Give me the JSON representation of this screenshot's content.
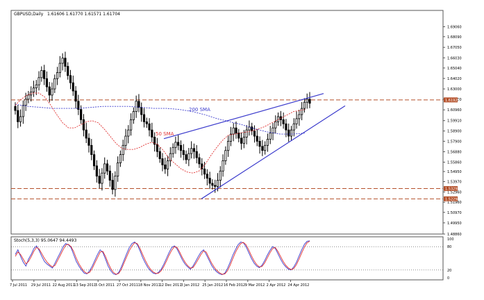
{
  "chart_data": [
    {
      "type": "candlestick",
      "title": "GBPUSD,Daily",
      "ohlc_readout": "1.61606 1.61770 1.61571 1.61704",
      "ylim": [
        1.4886,
        1.7065
      ],
      "y_ticks": [
        "1.69060",
        "1.68090",
        "1.67050",
        "1.66030",
        "1.65040",
        "1.64020",
        "1.63000",
        "1.62000",
        "1.60960",
        "1.59910",
        "1.58900",
        "1.57900",
        "1.56880",
        "1.55860",
        "1.54950",
        "1.53970",
        "1.52960",
        "1.51960",
        "1.50970",
        "1.49950",
        "1.48860"
      ],
      "price_tags": [
        {
          "label": "1.61929",
          "value": 1.6193,
          "color": "#b4502a"
        },
        {
          "label": "1.53292",
          "value": 1.5329,
          "color": "#b4502a"
        },
        {
          "label": "1.52294",
          "value": 1.5229,
          "color": "#b4502a"
        }
      ],
      "x_labels": [
        "7 Jul 2011",
        "29 Jul 2011",
        "22 Aug 2011",
        "13 Sep 2011",
        "5 Oct 2011",
        "27 Oct 2011",
        "18 Nov 2011",
        "12 Dec 2011",
        "3 Jan 2012",
        "25 Jan 2012",
        "16 Feb 2012",
        "9 Mar 2012",
        "2 Apr 2012",
        "24 Apr 2012"
      ],
      "closes": [
        1.609,
        1.598,
        1.603,
        1.614,
        1.62,
        1.624,
        1.627,
        1.631,
        1.634,
        1.641,
        1.648,
        1.64,
        1.632,
        1.624,
        1.63,
        1.64,
        1.646,
        1.655,
        1.66,
        1.652,
        1.643,
        1.636,
        1.628,
        1.618,
        1.61,
        1.6,
        1.59,
        1.582,
        1.575,
        1.566,
        1.555,
        1.545,
        1.538,
        1.548,
        1.557,
        1.55,
        1.541,
        1.532,
        1.545,
        1.558,
        1.566,
        1.575,
        1.584,
        1.59,
        1.6,
        1.608,
        1.618,
        1.612,
        1.605,
        1.598,
        1.596,
        1.59,
        1.583,
        1.576,
        1.569,
        1.562,
        1.556,
        1.552,
        1.56,
        1.567,
        1.573,
        1.578,
        1.575,
        1.57,
        1.566,
        1.561,
        1.567,
        1.572,
        1.569,
        1.563,
        1.557,
        1.552,
        1.547,
        1.543,
        1.538,
        1.536,
        1.535,
        1.541,
        1.55,
        1.56,
        1.57,
        1.579,
        1.586,
        1.592,
        1.587,
        1.582,
        1.577,
        1.583,
        1.59,
        1.593,
        1.589,
        1.584,
        1.579,
        1.574,
        1.57,
        1.575,
        1.581,
        1.587,
        1.592,
        1.598,
        1.603,
        1.6,
        1.596,
        1.59,
        1.584,
        1.59,
        1.596,
        1.601,
        1.605,
        1.611,
        1.617,
        1.62,
        1.616
      ],
      "sma_labels": [
        {
          "label": "200 SMA",
          "color": "#3a3acc"
        },
        {
          "label": "50 SMA",
          "color": "#e03030"
        }
      ],
      "sma200": [
        1.615,
        1.613,
        1.612,
        1.611,
        1.611,
        1.611,
        1.612,
        1.613,
        1.613,
        1.613,
        1.612,
        1.611,
        1.611,
        1.61,
        1.608,
        1.605,
        1.601,
        1.598,
        1.595,
        1.591,
        1.588,
        1.586,
        1.586,
        1.587
      ],
      "sma50": [
        1.614,
        1.62,
        1.624,
        1.626,
        1.626,
        1.622,
        1.614,
        1.605,
        1.597,
        1.592,
        1.592,
        1.595,
        1.598,
        1.599,
        1.597,
        1.591,
        1.584,
        1.577,
        1.572,
        1.571,
        1.571,
        1.573,
        1.576,
        1.578,
        1.576,
        1.57,
        1.562,
        1.557,
        1.552,
        1.549,
        1.548,
        1.55,
        1.556,
        1.565,
        1.573,
        1.58,
        1.585,
        1.586,
        1.587,
        1.588,
        1.589,
        1.591,
        1.593,
        1.596,
        1.599,
        1.602,
        1.605,
        1.608,
        1.609,
        1.61
      ]
    },
    {
      "type": "line",
      "title": "Stoch(5,3,3) 95.0647 94.4493",
      "ylim": [
        0,
        100
      ],
      "y_ticks": [
        "100",
        "80",
        "20",
        "0"
      ],
      "levels": [
        80,
        20
      ],
      "series": [
        {
          "color": "#3a3acc",
          "values": [
            60,
            72,
            55,
            40,
            30,
            48,
            60,
            75,
            82,
            70,
            55,
            42,
            35,
            30,
            25,
            38,
            52,
            65,
            80,
            88,
            85,
            78,
            60,
            42,
            30,
            20,
            12,
            10,
            18,
            30,
            45,
            60,
            72,
            65,
            48,
            30,
            18,
            10,
            8,
            14,
            28,
            45,
            62,
            78,
            88,
            92,
            85,
            70,
            52,
            38,
            26,
            18,
            12,
            10,
            14,
            22,
            35,
            50,
            65,
            78,
            82,
            74,
            60,
            46,
            35,
            28,
            22,
            30,
            42,
            55,
            66,
            72,
            60,
            46,
            32,
            22,
            15,
            10,
            8,
            12,
            24,
            40,
            58,
            72,
            85,
            92,
            90,
            80,
            65,
            50,
            38,
            30,
            26,
            32,
            44,
            58,
            70,
            80,
            76,
            62,
            48,
            36,
            28,
            22,
            20,
            28,
            40,
            56,
            72,
            86,
            94,
            95
          ]
        },
        {
          "color": "#e03030",
          "values": [
            55,
            66,
            60,
            48,
            36,
            42,
            54,
            68,
            78,
            74,
            62,
            50,
            40,
            33,
            28,
            32,
            45,
            58,
            72,
            84,
            86,
            80,
            68,
            50,
            36,
            25,
            16,
            11,
            14,
            24,
            38,
            52,
            66,
            68,
            55,
            38,
            24,
            14,
            9,
            11,
            22,
            38,
            54,
            70,
            82,
            90,
            88,
            76,
            60,
            45,
            32,
            22,
            15,
            11,
            12,
            18,
            29,
            43,
            58,
            71,
            80,
            78,
            66,
            52,
            40,
            31,
            25,
            26,
            36,
            48,
            60,
            69,
            66,
            52,
            38,
            27,
            19,
            13,
            9,
            10,
            18,
            32,
            49,
            65,
            78,
            88,
            91,
            85,
            72,
            57,
            44,
            34,
            28,
            29,
            38,
            51,
            64,
            75,
            78,
            68,
            55,
            42,
            32,
            25,
            21,
            24,
            34,
            48,
            64,
            79,
            90,
            94
          ]
        }
      ]
    }
  ]
}
